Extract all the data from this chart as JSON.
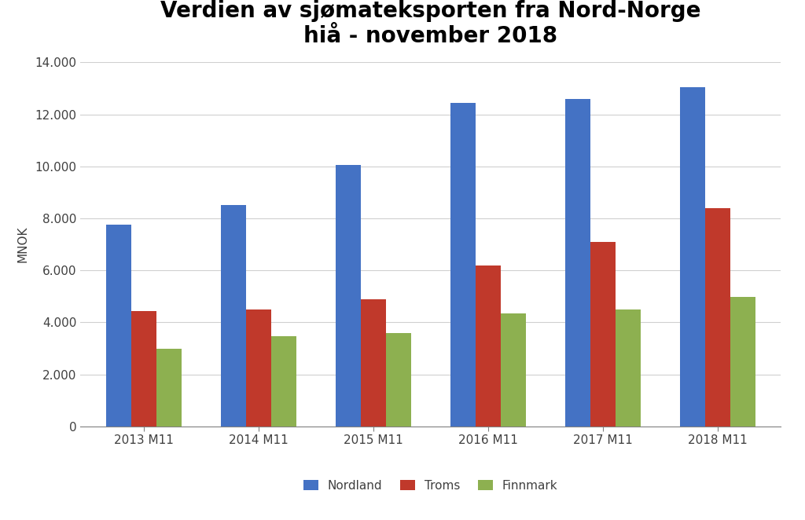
{
  "title": "Verdien av sjømateksporten fra Nord-Norge\nhiå - november 2018",
  "ylabel": "MNOK",
  "categories": [
    "2013 M11",
    "2014 M11",
    "2015 M11",
    "2016 M11",
    "2017 M11",
    "2018 M11"
  ],
  "series": {
    "Nordland": [
      7750,
      8500,
      10050,
      12450,
      12600,
      13050
    ],
    "Troms": [
      4450,
      4500,
      4875,
      6200,
      7100,
      8400
    ],
    "Finnmark": [
      3000,
      3475,
      3600,
      4350,
      4500,
      4975
    ]
  },
  "colors": {
    "Nordland": "#4472C4",
    "Troms": "#C0392B",
    "Finnmark": "#8DB050"
  },
  "ylim": [
    0,
    14000
  ],
  "yticks": [
    0,
    2000,
    4000,
    6000,
    8000,
    10000,
    12000,
    14000
  ],
  "ytick_labels": [
    "0",
    "2.000",
    "4.000",
    "6.000",
    "8.000",
    "10.000",
    "12.000",
    "14.000"
  ],
  "background_color": "#FFFFFF",
  "title_fontsize": 20,
  "axis_label_fontsize": 11,
  "tick_fontsize": 11,
  "legend_fontsize": 11,
  "bar_width": 0.22,
  "grid_color": "#D0D0D0"
}
